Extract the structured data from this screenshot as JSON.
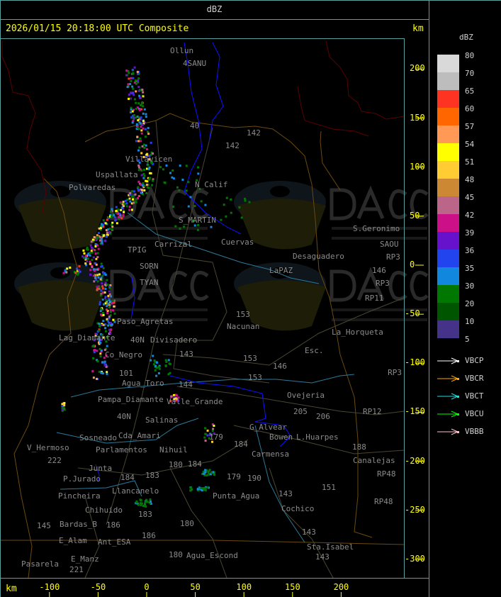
{
  "header": {
    "unit_title": "dBZ"
  },
  "map": {
    "title": "2026/01/15 20:18:00 UTC Composite",
    "axis_unit": "km",
    "y_ticks": [
      "200",
      "150",
      "100",
      "50",
      "0",
      "-50",
      "-100",
      "-150",
      "-200",
      "-250",
      "-300"
    ],
    "x_ticks": [
      "-100",
      "-50",
      "0",
      "50",
      "100",
      "150",
      "200"
    ],
    "labels": [
      "Ollun",
      "4SANU",
      "40",
      "142",
      "142",
      "Villavicen",
      "Uspallata",
      "N_Calif",
      "Polvaredas",
      "S_MARTIN",
      "Carrizal",
      "Cuervas",
      "S.Geronimo",
      "SAOU",
      "Desaguadero",
      "LaPAZ",
      "146",
      "RP3",
      "RP3",
      "RP11",
      "TPIG",
      "SORN",
      "TYAN",
      "153",
      "Nacunan",
      "La_Horqueta",
      "Paso_Agretas",
      "Lag_Diamante",
      "Co_Negro",
      "Divisadero",
      "143",
      "153",
      "146",
      "Esc.",
      "40N",
      "101",
      "Agua_Toro",
      "153",
      "Pampa_Diamante",
      "Ovejeria",
      "205",
      "206",
      "Salinas",
      "Cda_Amari",
      "Parlamentos",
      "Sosneado",
      "Nihuil",
      "G_Alvear",
      "Bowen",
      "L.Huarpes",
      "Carmensa",
      "188",
      "Canalejas",
      "V_Hermoso",
      "222",
      "Junta",
      "184",
      "180",
      "184",
      "184",
      "P.Jurado",
      "Pincheira",
      "Llancanelo",
      "183",
      "179",
      "190",
      "Punta_Agua",
      "Chihuido",
      "186",
      "Ant_ESA",
      "183",
      "151",
      "143",
      "Cochico",
      "Bardas_B",
      "145",
      "180",
      "186",
      "143",
      "E_Manz",
      "221",
      "E_Alam",
      "Pasarela",
      "180",
      "Agua_Escond",
      "143",
      "Sta.Isabel",
      "RP12",
      "RP3",
      "RP48",
      "RP48",
      "Valle_Grande",
      "179",
      "40N",
      "144"
    ],
    "watermark": {
      "name": "DACC",
      "line1": "Dirección de Agricultura",
      "line2": "y Contingencias Climáticas",
      "url": "http://www.contingencias.mendoza.gov.ar"
    },
    "colors": {
      "border_intl": "#6a0000",
      "border_prov": "#6b4a10",
      "roads": "#4a4632",
      "rivers": "#2a7a9a",
      "lakes": "#1010ff",
      "frame": "#5aa0a0",
      "axis": "#ffff00"
    }
  },
  "legend": {
    "title": "dBZ",
    "scale": [
      {
        "label": "80",
        "color": "#d9d9d9"
      },
      {
        "label": "70",
        "color": "#bdbdbd"
      },
      {
        "label": "65",
        "color": "#ff3322"
      },
      {
        "label": "60",
        "color": "#ff6600"
      },
      {
        "label": "57",
        "color": "#ff9955"
      },
      {
        "label": "54",
        "color": "#ffff00"
      },
      {
        "label": "51",
        "color": "#ffcc33"
      },
      {
        "label": "48",
        "color": "#cc8833"
      },
      {
        "label": "45",
        "color": "#bb6688"
      },
      {
        "label": "42",
        "color": "#cc1188"
      },
      {
        "label": "39",
        "color": "#6611cc"
      },
      {
        "label": "36",
        "color": "#2244ee"
      },
      {
        "label": "35",
        "color": "#1188dd"
      },
      {
        "label": "30",
        "color": "#007700"
      },
      {
        "label": "20",
        "color": "#005500"
      },
      {
        "label": "10",
        "color": "#443388"
      }
    ],
    "scale_min_label": "5",
    "radars": [
      {
        "label": "VBCP",
        "color": "#ffffff"
      },
      {
        "label": "VBCR",
        "color": "#ffa500"
      },
      {
        "label": "VBCT",
        "color": "#22dddd"
      },
      {
        "label": "VBCU",
        "color": "#00ff00"
      },
      {
        "label": "VBBB",
        "color": "#ffc0cb"
      }
    ]
  }
}
